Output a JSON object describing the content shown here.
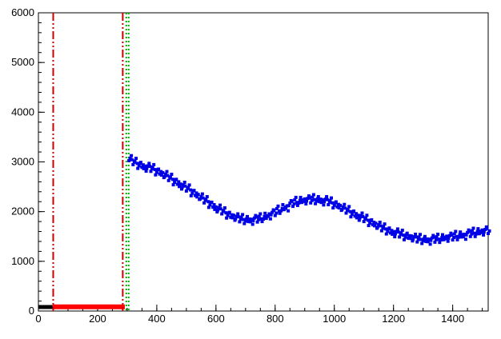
{
  "chart_data": {
    "type": "scatter",
    "title": "",
    "xlabel": "",
    "ylabel": "",
    "xlim": [
      0,
      1520
    ],
    "ylim": [
      0,
      6000
    ],
    "grid": false,
    "legend": "none",
    "background": "#ffffff",
    "frame_color": "#000000",
    "x_major_ticks": [
      0,
      200,
      400,
      600,
      800,
      1000,
      1200,
      1400
    ],
    "x_minor_step": 50,
    "y_major_ticks": [
      0,
      1000,
      2000,
      3000,
      4000,
      5000,
      6000
    ],
    "y_minor_step": 200,
    "series": [
      {
        "name": "black-baseline-histogram",
        "type": "segment",
        "color": "#000000",
        "width": 5,
        "x1": 0,
        "x2": 48,
        "y": 80
      },
      {
        "name": "red-baseline-histogram",
        "type": "segment",
        "color": "#ff0000",
        "width": 6,
        "x1": 48,
        "x2": 292,
        "y": 85
      },
      {
        "name": "blue-signal-scatter",
        "type": "points",
        "color": "#0000e6",
        "marker": "square",
        "marker_size": 4,
        "band_offsets": [
          -50,
          0,
          50
        ],
        "points": [
          [
            310,
            3075
          ],
          [
            320,
            2995
          ],
          [
            330,
            3020
          ],
          [
            340,
            2920
          ],
          [
            350,
            2940
          ],
          [
            360,
            2865
          ],
          [
            370,
            2920
          ],
          [
            380,
            2860
          ],
          [
            390,
            2895
          ],
          [
            400,
            2790
          ],
          [
            410,
            2805
          ],
          [
            420,
            2735
          ],
          [
            430,
            2755
          ],
          [
            440,
            2675
          ],
          [
            450,
            2700
          ],
          [
            460,
            2590
          ],
          [
            470,
            2600
          ],
          [
            480,
            2505
          ],
          [
            490,
            2540
          ],
          [
            500,
            2465
          ],
          [
            510,
            2485
          ],
          [
            520,
            2370
          ],
          [
            530,
            2375
          ],
          [
            540,
            2295
          ],
          [
            550,
            2305
          ],
          [
            560,
            2225
          ],
          [
            570,
            2250
          ],
          [
            580,
            2135
          ],
          [
            590,
            2140
          ],
          [
            600,
            2045
          ],
          [
            610,
            2080
          ],
          [
            620,
            2005
          ],
          [
            630,
            2025
          ],
          [
            640,
            1920
          ],
          [
            650,
            1935
          ],
          [
            660,
            1875
          ],
          [
            670,
            1905
          ],
          [
            680,
            1845
          ],
          [
            690,
            1890
          ],
          [
            700,
            1810
          ],
          [
            710,
            1850
          ],
          [
            720,
            1795
          ],
          [
            730,
            1870
          ],
          [
            740,
            1840
          ],
          [
            750,
            1905
          ],
          [
            760,
            1850
          ],
          [
            770,
            1915
          ],
          [
            780,
            1905
          ],
          [
            790,
            1985
          ],
          [
            800,
            1970
          ],
          [
            810,
            2060
          ],
          [
            820,
            2015
          ],
          [
            830,
            2090
          ],
          [
            840,
            2065
          ],
          [
            850,
            2170
          ],
          [
            860,
            2155
          ],
          [
            870,
            2235
          ],
          [
            880,
            2175
          ],
          [
            890,
            2235
          ],
          [
            900,
            2205
          ],
          [
            910,
            2265
          ],
          [
            920,
            2225
          ],
          [
            930,
            2290
          ],
          [
            940,
            2210
          ],
          [
            950,
            2250
          ],
          [
            960,
            2185
          ],
          [
            970,
            2250
          ],
          [
            980,
            2190
          ],
          [
            990,
            2225
          ],
          [
            1000,
            2125
          ],
          [
            1010,
            2145
          ],
          [
            1020,
            2075
          ],
          [
            1030,
            2095
          ],
          [
            1040,
            2020
          ],
          [
            1050,
            2050
          ],
          [
            1060,
            1945
          ],
          [
            1070,
            1960
          ],
          [
            1080,
            1875
          ],
          [
            1090,
            1920
          ],
          [
            1100,
            1850
          ],
          [
            1110,
            1875
          ],
          [
            1120,
            1770
          ],
          [
            1130,
            1785
          ],
          [
            1140,
            1715
          ],
          [
            1150,
            1735
          ],
          [
            1160,
            1665
          ],
          [
            1170,
            1700
          ],
          [
            1180,
            1600
          ],
          [
            1190,
            1620
          ],
          [
            1200,
            1545
          ],
          [
            1210,
            1600
          ],
          [
            1220,
            1540
          ],
          [
            1230,
            1575
          ],
          [
            1240,
            1485
          ],
          [
            1250,
            1515
          ],
          [
            1260,
            1460
          ],
          [
            1270,
            1495
          ],
          [
            1280,
            1440
          ],
          [
            1290,
            1490
          ],
          [
            1300,
            1410
          ],
          [
            1310,
            1450
          ],
          [
            1320,
            1395
          ],
          [
            1330,
            1470
          ],
          [
            1340,
            1435
          ],
          [
            1350,
            1495
          ],
          [
            1360,
            1430
          ],
          [
            1370,
            1485
          ],
          [
            1380,
            1455
          ],
          [
            1390,
            1515
          ],
          [
            1400,
            1480
          ],
          [
            1410,
            1550
          ],
          [
            1420,
            1485
          ],
          [
            1430,
            1540
          ],
          [
            1440,
            1495
          ],
          [
            1450,
            1580
          ],
          [
            1460,
            1550
          ],
          [
            1470,
            1615
          ],
          [
            1480,
            1550
          ],
          [
            1490,
            1605
          ],
          [
            1500,
            1580
          ],
          [
            1510,
            1640
          ],
          [
            1520,
            1610
          ]
        ]
      }
    ],
    "vlines": [
      {
        "name": "red-cut-line-left",
        "x": 50,
        "color": "#cc0000",
        "style": "dashdot",
        "width": 2
      },
      {
        "name": "red-cut-line-right",
        "x": 285,
        "color": "#cc0000",
        "style": "dashdot",
        "width": 2
      },
      {
        "name": "green-cut-line-left",
        "x": 297,
        "color": "#00b400",
        "style": "dotted",
        "width": 2
      },
      {
        "name": "green-cut-line-right",
        "x": 305,
        "color": "#00b400",
        "style": "dotted",
        "width": 2
      }
    ]
  }
}
